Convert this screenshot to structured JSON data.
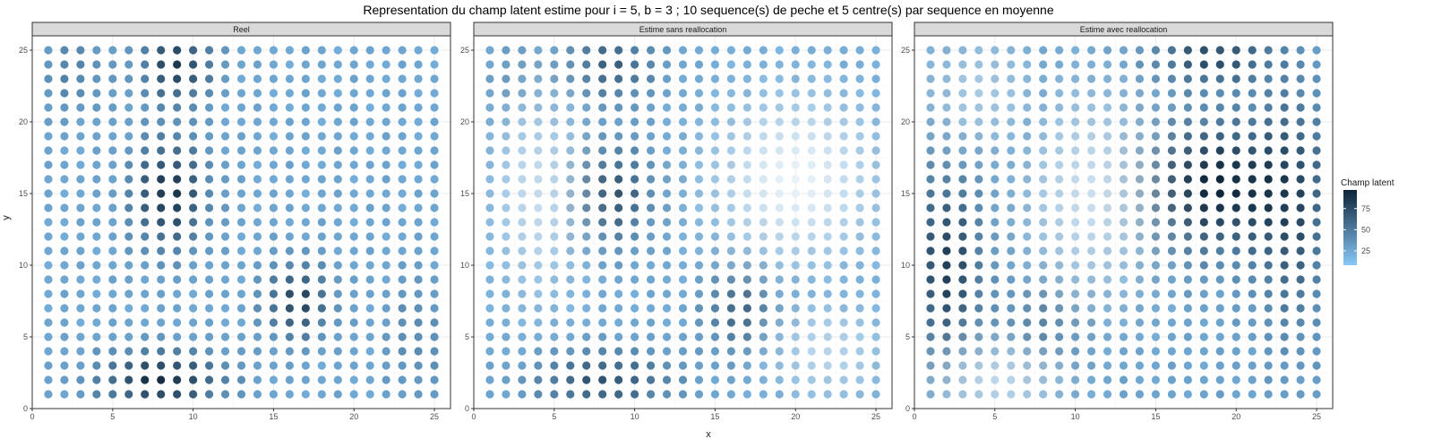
{
  "chart_data": {
    "type": "scatter",
    "title": "Representation du champ latent estime pour i = 5, b = 3 ; 10 sequence(s) de peche et 5 centre(s) par sequence en moyenne",
    "xlabel": "x",
    "ylabel": "y",
    "xlim": [
      0,
      26
    ],
    "ylim": [
      0,
      26
    ],
    "x_ticks": [
      0,
      5,
      10,
      15,
      20,
      25
    ],
    "y_ticks": [
      0,
      5,
      10,
      15,
      20,
      25
    ],
    "grid_x": [
      1,
      2,
      3,
      4,
      5,
      6,
      7,
      8,
      9,
      10,
      11,
      12,
      13,
      14,
      15,
      16,
      17,
      18,
      19,
      20,
      21,
      22,
      23,
      24,
      25
    ],
    "grid_y": [
      1,
      2,
      3,
      4,
      5,
      6,
      7,
      8,
      9,
      10,
      11,
      12,
      13,
      14,
      15,
      16,
      17,
      18,
      19,
      20,
      21,
      22,
      23,
      24,
      25
    ],
    "grid": true,
    "legend": {
      "title": "Champ latent",
      "position": "right",
      "breaks": [
        25,
        50,
        75
      ],
      "range": [
        0,
        100
      ],
      "low_color": "#88c8f8",
      "high_color": "#0d2438",
      "faded_color": "#ffffff"
    },
    "panels": [
      {
        "title": "Reel",
        "field": {
          "base": 20,
          "components": [
            {
              "type": "blob",
              "cx": 8.5,
              "cy": 15,
              "amp": 70,
              "sx": 1.6,
              "sy": 2.6
            },
            {
              "type": "blob",
              "cx": 9,
              "cy": 24,
              "amp": 65,
              "sx": 1.5,
              "sy": 1.8
            },
            {
              "type": "blob",
              "cx": 8,
              "cy": 2,
              "amp": 72,
              "sx": 2.6,
              "sy": 1.4
            },
            {
              "type": "blob",
              "cx": 16.5,
              "cy": 7.5,
              "amp": 60,
              "sx": 1.4,
              "sy": 1.8
            },
            {
              "type": "blob",
              "cx": 2.5,
              "cy": 23.5,
              "amp": 22,
              "sx": 1.5,
              "sy": 2.0
            },
            {
              "type": "blob",
              "cx": 24,
              "cy": 5,
              "amp": 18,
              "sx": 1.4,
              "sy": 3.0
            }
          ],
          "fade": []
        }
      },
      {
        "title": "Estime sans reallocation",
        "field": {
          "base": 18,
          "components": [
            {
              "type": "blob",
              "cx": 8.5,
              "cy": 15,
              "amp": 55,
              "sx": 1.8,
              "sy": 2.4
            },
            {
              "type": "blob",
              "cx": 8.5,
              "cy": 24,
              "amp": 45,
              "sx": 2.0,
              "sy": 1.8
            },
            {
              "type": "blob",
              "cx": 8,
              "cy": 2,
              "amp": 52,
              "sx": 3.0,
              "sy": 1.5
            },
            {
              "type": "blob",
              "cx": 16.5,
              "cy": 7,
              "amp": 45,
              "sx": 1.5,
              "sy": 2.0
            },
            {
              "type": "blob",
              "cx": 2.5,
              "cy": 23,
              "amp": 15,
              "sx": 1.5,
              "sy": 2.0
            }
          ],
          "fade": [
            {
              "cx": 20,
              "cy": 16,
              "amp": 0.85,
              "sx": 3.5,
              "sy": 4.0
            },
            {
              "cx": 4,
              "cy": 15,
              "amp": 0.6,
              "sx": 2.0,
              "sy": 5.0
            },
            {
              "cx": 22,
              "cy": 4,
              "amp": 0.5,
              "sx": 2.5,
              "sy": 2.5
            }
          ]
        }
      },
      {
        "title": "Estime avec reallocation",
        "field": {
          "base": 22,
          "components": [
            {
              "type": "blob",
              "cx": 18.5,
              "cy": 15.5,
              "amp": 80,
              "sx": 3.0,
              "sy": 3.0
            },
            {
              "type": "blob",
              "cx": 2,
              "cy": 10,
              "amp": 62,
              "sx": 1.5,
              "sy": 4.5
            },
            {
              "type": "blob",
              "cx": 18.5,
              "cy": 24.5,
              "amp": 55,
              "sx": 2.5,
              "sy": 1.3
            },
            {
              "type": "blob",
              "cx": 23.5,
              "cy": 14,
              "amp": 45,
              "sx": 1.6,
              "sy": 6.0
            },
            {
              "type": "blob",
              "cx": 8,
              "cy": 6,
              "amp": 25,
              "sx": 1.8,
              "sy": 2.2
            }
          ],
          "fade": [
            {
              "cx": 11,
              "cy": 15,
              "amp": 0.65,
              "sx": 2.8,
              "sy": 5.0
            },
            {
              "cx": 4,
              "cy": 22,
              "amp": 0.4,
              "sx": 2.5,
              "sy": 3.0
            },
            {
              "cx": 5,
              "cy": 2,
              "amp": 0.55,
              "sx": 3.0,
              "sy": 2.0
            }
          ]
        }
      }
    ]
  }
}
